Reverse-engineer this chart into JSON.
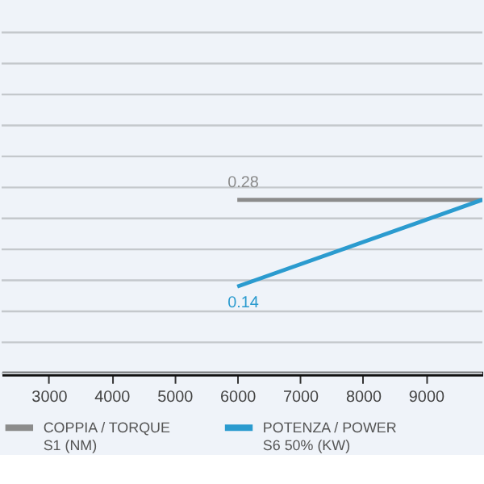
{
  "chart_data": {
    "type": "line",
    "x": [
      6000,
      9900
    ],
    "series": [
      {
        "name": "COPPIA / TORQUE\nS1 (NM)",
        "color": "#8c8c8c",
        "values": [
          0.28,
          0.28
        ],
        "value_labels": [
          "0.28",
          null
        ]
      },
      {
        "name": "POTENZA / POWER\nS6 50% (KW)",
        "color": "#2b9bcf",
        "values": [
          0.14,
          0.28
        ],
        "value_labels": [
          "0.14",
          null
        ]
      }
    ],
    "xlim": [
      2250,
      9900
    ],
    "xticks": [
      3000,
      4000,
      5000,
      6000,
      7000,
      8000,
      9000
    ],
    "ylim": [
      0,
      0.6
    ],
    "yticks": [
      {
        "value": 0,
        "label": null
      },
      {
        "value": 0.05,
        "label": null
      },
      {
        "value": 0.1,
        "label": null
      },
      {
        "value": 0.15,
        "label": null
      },
      {
        "value": 0.2,
        "label": null
      },
      {
        "value": 0.25,
        "label": null
      },
      {
        "value": 0.3,
        "label": null
      },
      {
        "value": 0.35,
        "label": null
      },
      {
        "value": 0.4,
        "label": null
      },
      {
        "value": 0.45,
        "label": null
      },
      {
        "value": 0.5,
        "label": null
      },
      {
        "value": 0.55,
        "label": null
      }
    ],
    "tick_labels": "x",
    "grid": "y",
    "legend": "bottom",
    "marker": "none",
    "line_style": "solid"
  }
}
